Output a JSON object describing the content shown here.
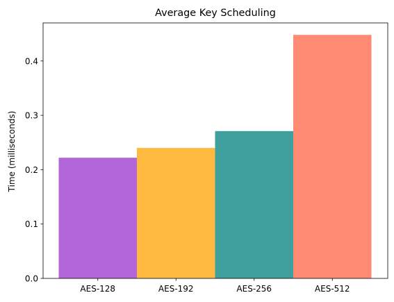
{
  "chart_data": {
    "type": "bar",
    "title": "Average Key Scheduling",
    "xlabel": "",
    "ylabel": "Time (milliseconds)",
    "categories": [
      "AES-128",
      "AES-192",
      "AES-256",
      "AES-512"
    ],
    "values": [
      0.222,
      0.24,
      0.271,
      0.448
    ],
    "ylim": [
      0.0,
      0.47
    ],
    "yticks": [
      0.0,
      0.1,
      0.2,
      0.3,
      0.4
    ],
    "ytick_labels": [
      "0.0",
      "0.1",
      "0.2",
      "0.3",
      "0.4"
    ],
    "colors": [
      "#b366d9",
      "#ffb940",
      "#40a09e",
      "#ff8a73"
    ],
    "grid": false,
    "legend": "none"
  }
}
